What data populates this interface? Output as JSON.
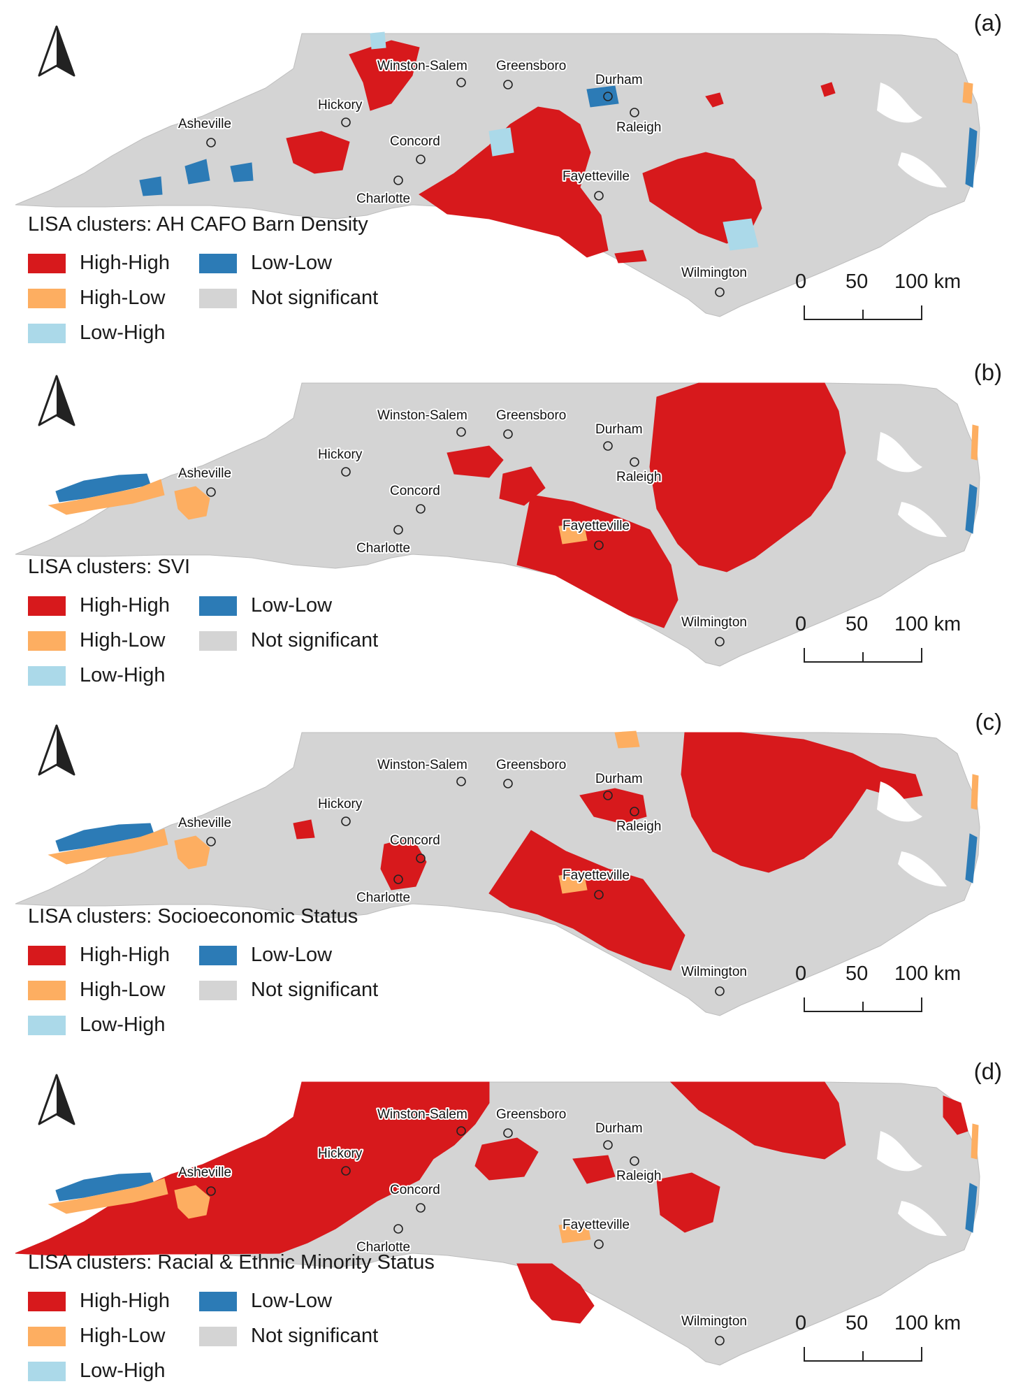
{
  "legend_colors": {
    "high_high": "#d7191c",
    "high_low": "#fdae61",
    "low_high": "#abd9e9",
    "low_low": "#2c7bb6",
    "not_significant": "#d4d4d4"
  },
  "legend_labels": {
    "high_high": "High-High",
    "high_low": "High-Low",
    "low_high": "Low-High",
    "low_low": "Low-Low",
    "not_significant": "Not significant"
  },
  "scale": {
    "ticks": [
      "0",
      "50",
      "100 km"
    ]
  },
  "cities": {
    "winston_salem": "Winston-Salem",
    "greensboro": "Greensboro",
    "durham": "Durham",
    "raleigh": "Raleigh",
    "hickory": "Hickory",
    "asheville": "Asheville",
    "concord": "Concord",
    "charlotte": "Charlotte",
    "fayetteville": "Fayetteville",
    "wilmington": "Wilmington"
  },
  "panels": [
    {
      "letter": "(a)",
      "legend_title": "LISA clusters: AH CAFO Barn Density"
    },
    {
      "letter": "(b)",
      "legend_title": "LISA clusters: SVI"
    },
    {
      "letter": "(c)",
      "legend_title": "LISA clusters: Socioeconomic Status"
    },
    {
      "letter": "(d)",
      "legend_title": "LISA clusters: Racial & Ethnic Minority Status"
    }
  ]
}
